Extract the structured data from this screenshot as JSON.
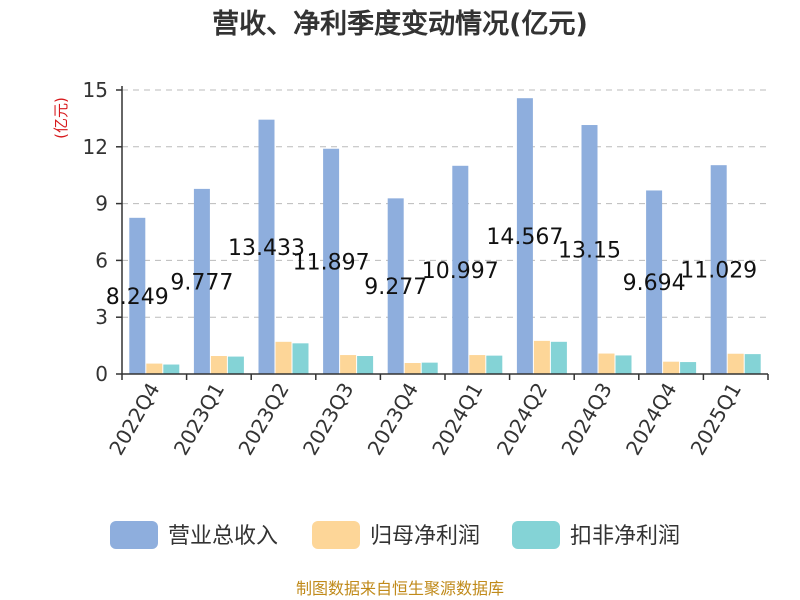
{
  "chart_data": {
    "type": "bar",
    "title": "营收、净利季度变动情况(亿元)",
    "ylabel": "(亿元)",
    "ylim": [
      0,
      15
    ],
    "yticks": [
      0,
      3,
      6,
      9,
      12,
      15
    ],
    "grid": true,
    "legend_position": "bottom",
    "categories": [
      "2022Q4",
      "2023Q1",
      "2023Q2",
      "2023Q3",
      "2023Q4",
      "2024Q1",
      "2024Q2",
      "2024Q3",
      "2024Q4",
      "2025Q1"
    ],
    "series": [
      {
        "name": "营业总收入",
        "color": "#8eaedd",
        "values": [
          8.249,
          9.777,
          13.433,
          11.897,
          9.277,
          10.997,
          14.567,
          13.15,
          9.694,
          11.029
        ],
        "labels": [
          "8.249",
          "9.777",
          "13.433",
          "11.897",
          "9.277",
          "10.997",
          "14.567",
          "13.15",
          "9.694",
          "11.029"
        ]
      },
      {
        "name": "归母净利润",
        "color": "#fdd698",
        "values": [
          0.55,
          0.95,
          1.7,
          1.0,
          0.58,
          1.0,
          1.75,
          1.08,
          0.65,
          1.07
        ]
      },
      {
        "name": "扣非净利润",
        "color": "#84d3d6",
        "values": [
          0.5,
          0.92,
          1.62,
          0.95,
          0.6,
          0.97,
          1.7,
          0.98,
          0.63,
          1.05
        ]
      }
    ]
  },
  "footer": {
    "source": "制图数据来自恒生聚源数据库"
  }
}
